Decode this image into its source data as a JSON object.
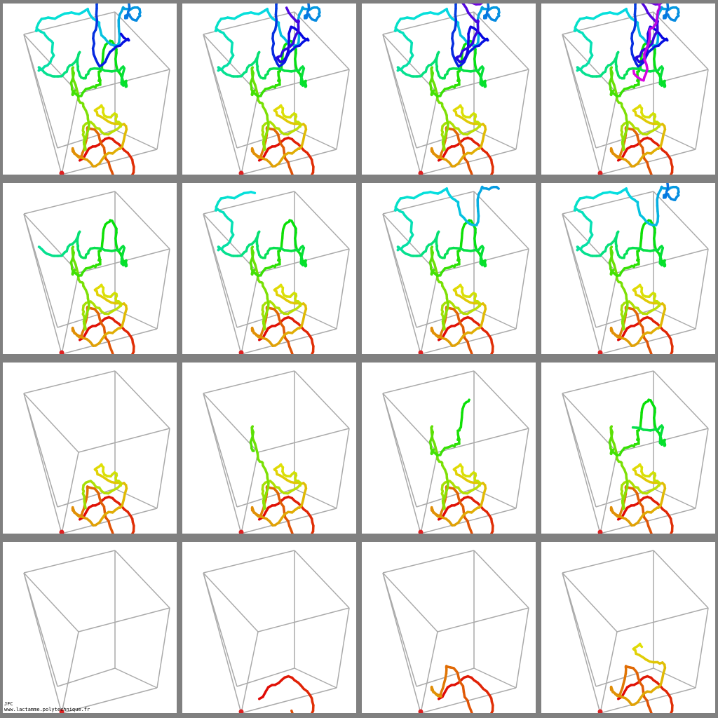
{
  "credit": {
    "author": "JFC",
    "url": "www.lactamme.polytechnique.fr"
  }
}
